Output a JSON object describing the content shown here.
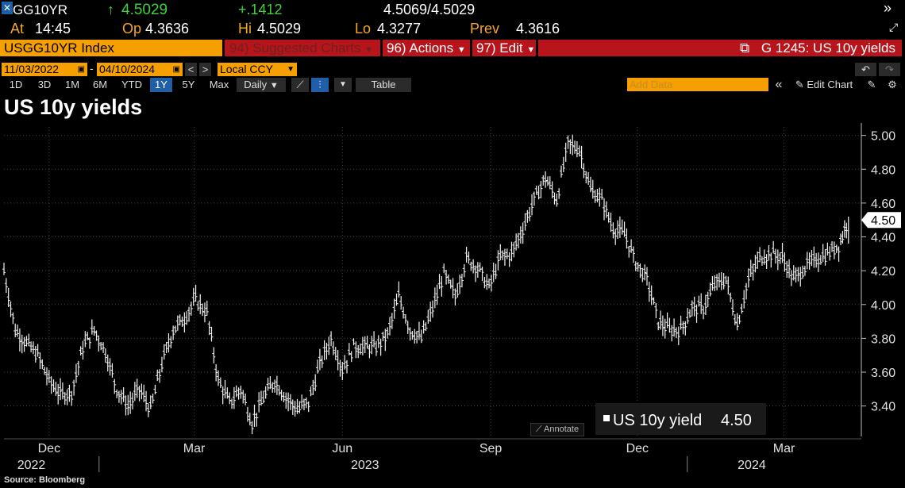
{
  "quote": {
    "ticker": "GG10YR",
    "last_arrow": "↑",
    "last": "4.5029",
    "change": "+.1412",
    "bid_ask": "4.5069/4.5029",
    "at_label": "At",
    "at_time": "14:45",
    "open_label": "Op",
    "open": "4.3636",
    "high_label": "Hi",
    "high": "4.5029",
    "low_label": "Lo",
    "low": "4.3277",
    "prev_label": "Prev",
    "prev": "4.3616"
  },
  "command_bar": {
    "security": "USGG10YR Index",
    "suggested": "94) Suggested Charts",
    "actions": "96) Actions",
    "edit": "97) Edit",
    "chart_id": "G 1245: US 10y yields"
  },
  "date_range": {
    "start": "11/03/2022",
    "separator": "-",
    "end": "04/10/2024",
    "currency": "Local CCY"
  },
  "toolbar": {
    "ranges": [
      "1D",
      "3D",
      "1M",
      "6M",
      "YTD",
      "1Y",
      "5Y",
      "Max"
    ],
    "selected_range": "1Y",
    "frequency": "Daily",
    "table_label": "Table",
    "add_data_placeholder": "Add Data",
    "edit_chart_label": "Edit Chart"
  },
  "annotate_label": "Annotate",
  "source": "Source: Bloomberg",
  "colors": {
    "background": "#000000",
    "bar": "#ffffff",
    "accent_orange": "#f5a000",
    "accent_red": "#b8141b",
    "up_green": "#3fd13f"
  },
  "chart_data": {
    "type": "line",
    "title": "US 10y yields",
    "series": [
      {
        "name": "US 10y yield",
        "last_value_label": "4.50",
        "x": [
          "2022-11-03",
          "2022-11-10",
          "2022-11-17",
          "2022-11-24",
          "2022-12-01",
          "2022-12-08",
          "2022-12-15",
          "2022-12-22",
          "2022-12-29",
          "2023-01-05",
          "2023-01-12",
          "2023-01-19",
          "2023-01-26",
          "2023-02-02",
          "2023-02-09",
          "2023-02-16",
          "2023-02-23",
          "2023-03-02",
          "2023-03-09",
          "2023-03-16",
          "2023-03-23",
          "2023-03-30",
          "2023-04-06",
          "2023-04-13",
          "2023-04-20",
          "2023-04-27",
          "2023-05-04",
          "2023-05-11",
          "2023-05-18",
          "2023-05-25",
          "2023-06-01",
          "2023-06-08",
          "2023-06-15",
          "2023-06-22",
          "2023-06-29",
          "2023-07-06",
          "2023-07-13",
          "2023-07-20",
          "2023-07-27",
          "2023-08-03",
          "2023-08-10",
          "2023-08-17",
          "2023-08-24",
          "2023-08-31",
          "2023-09-07",
          "2023-09-14",
          "2023-09-21",
          "2023-09-28",
          "2023-10-05",
          "2023-10-12",
          "2023-10-19",
          "2023-10-26",
          "2023-11-02",
          "2023-11-09",
          "2023-11-16",
          "2023-11-23",
          "2023-11-30",
          "2023-12-07",
          "2023-12-14",
          "2023-12-21",
          "2023-12-28",
          "2024-01-04",
          "2024-01-11",
          "2024-01-18",
          "2024-01-25",
          "2024-02-01",
          "2024-02-08",
          "2024-02-15",
          "2024-02-22",
          "2024-02-29",
          "2024-03-07",
          "2024-03-14",
          "2024-03-21",
          "2024-03-28",
          "2024-04-04",
          "2024-04-10"
        ],
        "values": [
          4.2,
          3.85,
          3.77,
          3.7,
          3.55,
          3.47,
          3.48,
          3.75,
          3.85,
          3.72,
          3.5,
          3.4,
          3.5,
          3.38,
          3.65,
          3.85,
          3.92,
          4.03,
          3.95,
          3.55,
          3.42,
          3.5,
          3.3,
          3.45,
          3.55,
          3.45,
          3.38,
          3.42,
          3.65,
          3.8,
          3.62,
          3.75,
          3.75,
          3.75,
          3.82,
          4.05,
          3.85,
          3.8,
          3.98,
          4.18,
          4.05,
          4.27,
          4.22,
          4.1,
          4.28,
          4.3,
          4.45,
          4.62,
          4.75,
          4.62,
          4.95,
          4.92,
          4.68,
          4.62,
          4.45,
          4.42,
          4.25,
          4.15,
          3.9,
          3.85,
          3.85,
          3.98,
          3.98,
          4.12,
          4.15,
          3.88,
          4.15,
          4.28,
          4.3,
          4.28,
          4.15,
          4.22,
          4.27,
          4.3,
          4.35,
          4.5
        ]
      }
    ],
    "y_ticks": [
      "5.00",
      "4.80",
      "4.60",
      "4.40",
      "4.20",
      "4.00",
      "3.80",
      "3.60",
      "3.40"
    ],
    "ylim": [
      3.22,
      5.05
    ],
    "x_month_labels": [
      "Dec",
      "Mar",
      "Jun",
      "Sep",
      "Dec",
      "Mar"
    ],
    "x_month_dates": [
      "2022-12-01",
      "2023-03-01",
      "2023-06-01",
      "2023-09-01",
      "2023-12-01",
      "2024-03-01"
    ],
    "x_year_labels": [
      "2022",
      "2023",
      "2024"
    ],
    "x_year_dates": [
      "2022-11-20",
      "2023-06-15",
      "2024-02-10"
    ],
    "xlim": [
      "2022-11-03",
      "2024-04-18"
    ],
    "grid": true,
    "legend": "bottom-right"
  }
}
